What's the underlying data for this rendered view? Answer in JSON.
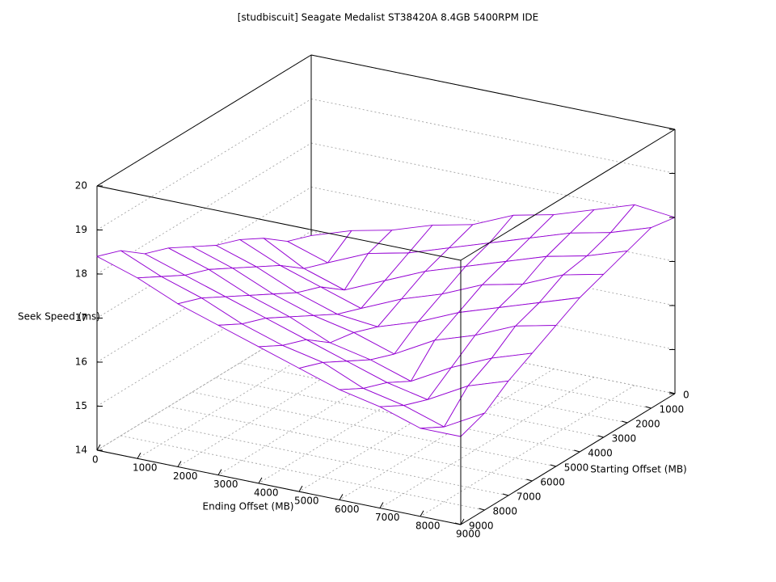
{
  "chart_data": {
    "type": "surface",
    "title": "[studbiscuit] Seagate Medalist ST38420A 8.4GB 5400RPM IDE",
    "xlabel": "Ending Offset (MB)",
    "ylabel": "Starting Offset (MB)",
    "zlabel": "Seek Speed (ms)",
    "x": [
      0,
      1000,
      2000,
      3000,
      4000,
      5000,
      6000,
      7000,
      8000,
      9000
    ],
    "y": [
      0,
      1000,
      2000,
      3000,
      4000,
      5000,
      6000,
      7000,
      8000,
      9000
    ],
    "z": [
      [
        15.9,
        16.2,
        16.4,
        16.7,
        16.9,
        17.3,
        17.5,
        17.8,
        18.1,
        18.0
      ],
      [
        16.1,
        15.8,
        16.2,
        16.4,
        16.7,
        17.0,
        17.3,
        17.6,
        17.8,
        18.1
      ],
      [
        16.5,
        16.0,
        15.7,
        16.1,
        16.5,
        16.8,
        17.1,
        17.4,
        17.6,
        17.9
      ],
      [
        16.8,
        16.4,
        16.1,
        15.8,
        16.2,
        16.5,
        16.9,
        17.1,
        17.5,
        17.7
      ],
      [
        17.0,
        16.7,
        16.3,
        16.0,
        15.9,
        16.2,
        16.6,
        16.9,
        17.2,
        17.5
      ],
      [
        17.3,
        17.0,
        16.6,
        16.3,
        16.1,
        15.8,
        16.3,
        16.6,
        17.0,
        17.2
      ],
      [
        17.6,
        17.3,
        16.9,
        16.6,
        16.2,
        16.0,
        15.7,
        16.2,
        16.6,
        16.9
      ],
      [
        17.8,
        17.5,
        17.2,
        16.9,
        16.6,
        16.3,
        16.0,
        15.8,
        16.3,
        16.6
      ],
      [
        18.2,
        17.8,
        17.5,
        17.1,
        16.8,
        16.6,
        16.2,
        16.0,
        15.7,
        16.2
      ],
      [
        18.4,
        18.1,
        17.7,
        17.4,
        17.1,
        16.8,
        16.5,
        16.3,
        16.0,
        16.0
      ]
    ],
    "xlim": [
      0,
      9000
    ],
    "ylim": [
      0,
      9000
    ],
    "zlim": [
      14,
      20
    ],
    "xticks": [
      0,
      1000,
      2000,
      3000,
      4000,
      5000,
      6000,
      7000,
      8000,
      9000
    ],
    "yticks": [
      0,
      1000,
      2000,
      3000,
      4000,
      5000,
      6000,
      7000,
      8000,
      9000
    ],
    "zticks": [
      14,
      15,
      16,
      17,
      18,
      19,
      20
    ],
    "color": "#9400d3",
    "grid": true
  }
}
